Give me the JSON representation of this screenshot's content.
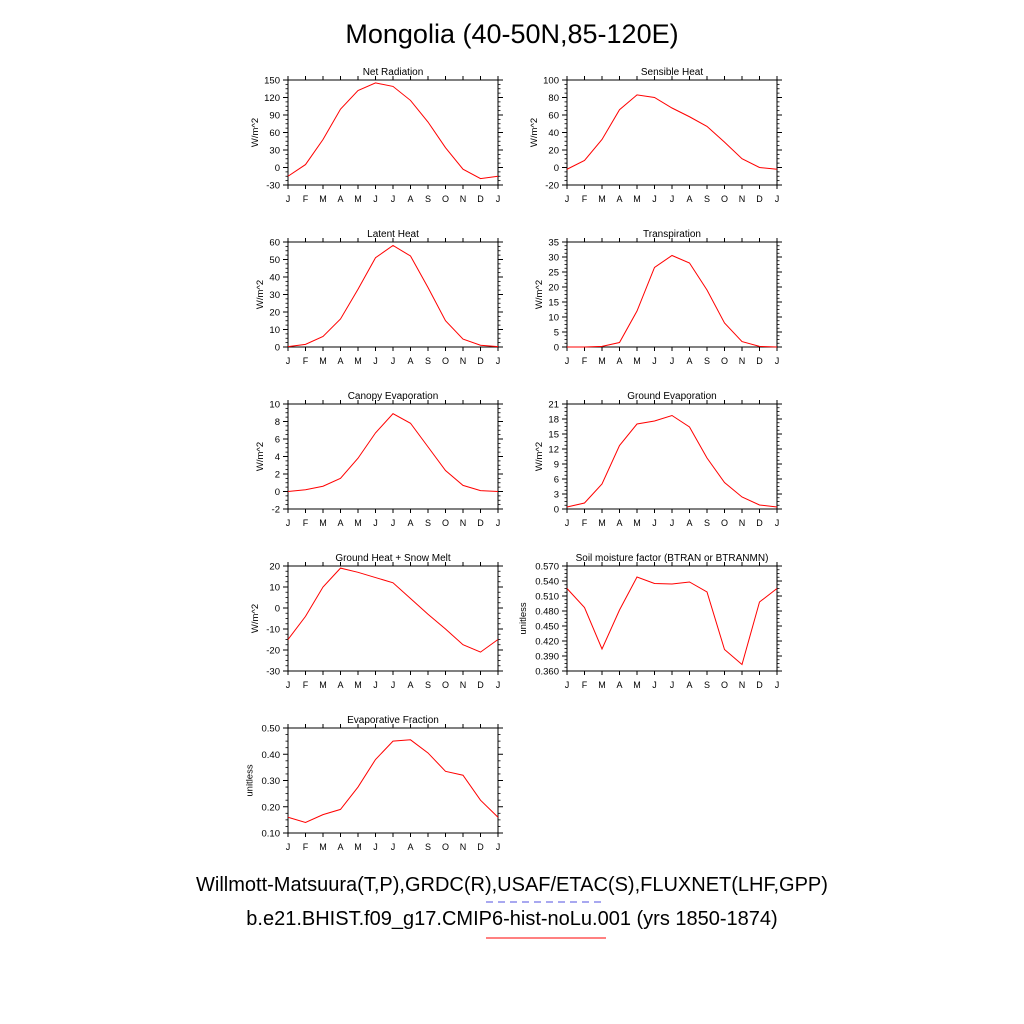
{
  "title": "Mongolia (40-50N,85-120E)",
  "months": [
    "J",
    "F",
    "M",
    "A",
    "M",
    "J",
    "J",
    "A",
    "S",
    "O",
    "N",
    "D",
    "J"
  ],
  "legend": [
    {
      "label": "Willmott-Matsuura(T,P),GRDC(R),USAF/ETAC(S),FLUXNET(LHF,GPP)",
      "color": "#5050e0",
      "style": "dashed"
    },
    {
      "label": "b.e21.BHIST.f09_g17.CMIP6-hist-noLu.001 (yrs 1850-1874)",
      "color": "#ff0000",
      "style": "solid"
    }
  ],
  "line_color": "#ff0000",
  "chart_data": [
    {
      "type": "line",
      "title": "Net Radiation",
      "ylabel": "W/m^2",
      "ylim": [
        -30,
        150
      ],
      "yticks": [
        "-30",
        "0",
        "30",
        "60",
        "90",
        "120",
        "150"
      ],
      "series": [
        {
          "values": [
            -15,
            5,
            48,
            100,
            132,
            145,
            139,
            115,
            78,
            34,
            -3,
            -19,
            -15
          ]
        }
      ]
    },
    {
      "type": "line",
      "title": "Sensible Heat",
      "ylabel": "W/m^2",
      "ylim": [
        -20,
        100
      ],
      "yticks": [
        "-20",
        "0",
        "20",
        "40",
        "60",
        "80",
        "100"
      ],
      "series": [
        {
          "values": [
            -2,
            8,
            32,
            66,
            83,
            80,
            68,
            58,
            47,
            29,
            10,
            0,
            -2
          ]
        }
      ]
    },
    {
      "type": "line",
      "title": "Latent Heat",
      "ylabel": "W/m^2",
      "ylim": [
        0,
        60
      ],
      "yticks": [
        "0",
        "10",
        "20",
        "30",
        "40",
        "50",
        "60"
      ],
      "series": [
        {
          "values": [
            0.2,
            1.5,
            6,
            16,
            33,
            51,
            58,
            52,
            34,
            15,
            4.5,
            1,
            0.2
          ]
        }
      ]
    },
    {
      "type": "line",
      "title": "Transpiration",
      "ylabel": "W/m^2",
      "ylim": [
        0,
        35
      ],
      "yticks": [
        "0",
        "5",
        "10",
        "15",
        "20",
        "25",
        "30",
        "35"
      ],
      "series": [
        {
          "values": [
            0,
            0,
            0.2,
            1.5,
            12,
            26.5,
            30.5,
            28,
            19,
            8,
            1.8,
            0.2,
            0
          ]
        }
      ]
    },
    {
      "type": "line",
      "title": "Canopy Evaporation",
      "ylabel": "W/m^2",
      "ylim": [
        -2,
        10
      ],
      "yticks": [
        "-2",
        "0",
        "2",
        "4",
        "6",
        "8",
        "10"
      ],
      "series": [
        {
          "values": [
            0,
            0.2,
            0.6,
            1.5,
            3.8,
            6.7,
            8.9,
            7.8,
            5.1,
            2.4,
            0.7,
            0.1,
            0
          ]
        }
      ]
    },
    {
      "type": "line",
      "title": "Ground Evaporation",
      "ylabel": "W/m^2",
      "ylim": [
        0,
        21
      ],
      "yticks": [
        "0",
        "3",
        "6",
        "9",
        "12",
        "15",
        "18",
        "21"
      ],
      "series": [
        {
          "values": [
            0.4,
            1.2,
            5,
            12.7,
            17,
            17.6,
            18.7,
            16.4,
            10.2,
            5.3,
            2.4,
            0.8,
            0.4
          ]
        }
      ]
    },
    {
      "type": "line",
      "title": "Ground Heat + Snow Melt",
      "ylabel": "W/m^2",
      "ylim": [
        -30,
        20
      ],
      "yticks": [
        "-30",
        "-20",
        "-10",
        "0",
        "10",
        "20"
      ],
      "series": [
        {
          "values": [
            -15,
            -4,
            10,
            19,
            17,
            14.5,
            12,
            4.5,
            -3,
            -10,
            -17.5,
            -21,
            -15
          ]
        }
      ]
    },
    {
      "type": "line",
      "title": "Soil moisture factor (BTRAN or BTRANMN)",
      "ylabel": "unitless",
      "ylim": [
        0.36,
        0.57
      ],
      "yticks": [
        "0.360",
        "0.390",
        "0.420",
        "0.450",
        "0.480",
        "0.510",
        "0.540",
        "0.570"
      ],
      "series": [
        {
          "values": [
            0.525,
            0.487,
            0.404,
            0.482,
            0.548,
            0.535,
            0.534,
            0.538,
            0.518,
            0.403,
            0.373,
            0.498,
            0.525
          ]
        }
      ]
    },
    {
      "type": "line",
      "title": "Evaporative Fraction",
      "ylabel": "unitless",
      "ylim": [
        0.1,
        0.5
      ],
      "yticks": [
        "0.10",
        "0.20",
        "0.30",
        "0.40",
        "0.50"
      ],
      "series": [
        {
          "values": [
            0.16,
            0.14,
            0.17,
            0.19,
            0.275,
            0.38,
            0.45,
            0.455,
            0.405,
            0.335,
            0.32,
            0.225,
            0.16
          ]
        }
      ]
    }
  ]
}
